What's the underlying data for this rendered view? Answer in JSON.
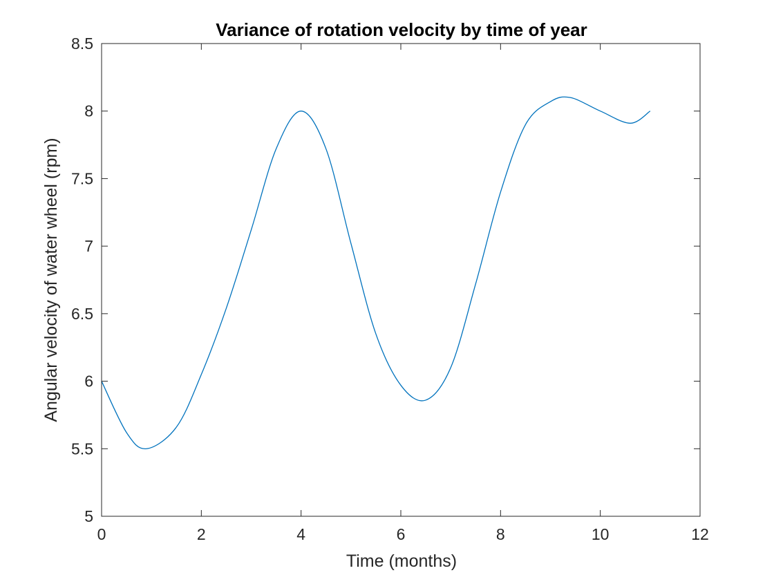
{
  "chart_data": {
    "type": "line",
    "title": "Variance of rotation velocity by time of year",
    "xlabel": "Time (months)",
    "ylabel": "Angular velocity of water wheel (rpm)",
    "xlim": [
      0,
      12
    ],
    "ylim": [
      5,
      8.5
    ],
    "xticks": [
      "0",
      "2",
      "4",
      "6",
      "8",
      "10",
      "12"
    ],
    "yticks": [
      "5",
      "5.5",
      "6",
      "6.5",
      "7",
      "7.5",
      "8",
      "8.5"
    ],
    "grid": false,
    "line_color": "#0072BD",
    "series": [
      {
        "x": [
          0,
          0.5,
          0.9,
          1.5,
          2.0,
          2.5,
          3.0,
          3.5,
          4.0,
          4.5,
          5.0,
          5.5,
          6.0,
          6.5,
          7.0,
          7.5,
          8.0,
          8.5,
          9.0,
          9.4,
          10.0,
          10.6,
          11.0
        ],
        "y": [
          6.0,
          5.62,
          5.5,
          5.66,
          6.05,
          6.54,
          7.12,
          7.72,
          8.0,
          7.72,
          7.02,
          6.35,
          5.97,
          5.86,
          6.1,
          6.72,
          7.4,
          7.9,
          8.07,
          8.1,
          8.0,
          7.91,
          8.0
        ]
      }
    ]
  }
}
